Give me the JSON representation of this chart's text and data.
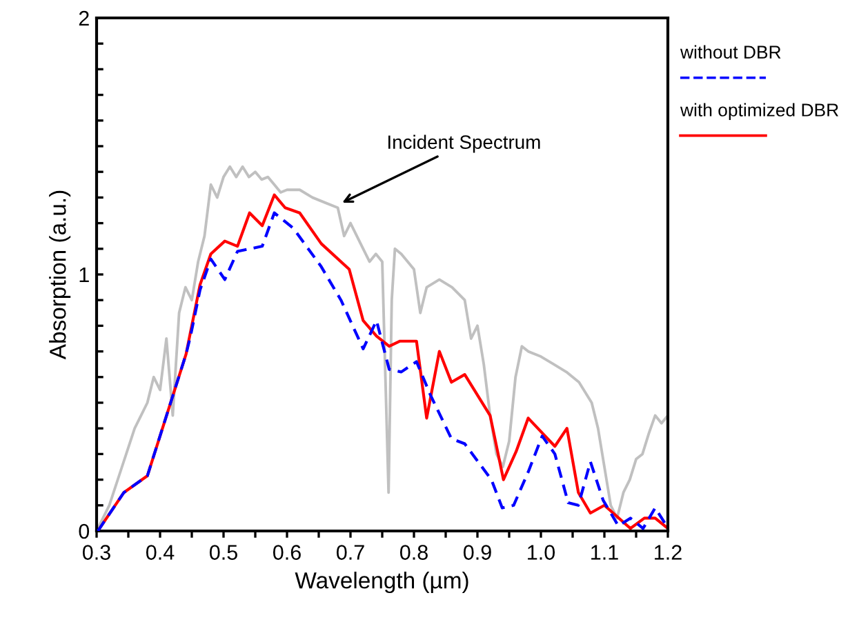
{
  "chart_data": {
    "type": "line",
    "xlabel": "Wavelength (µm)",
    "ylabel": "Absorption (a.u.)",
    "xlim": [
      0.3,
      1.2
    ],
    "ylim": [
      0,
      2
    ],
    "xticks": [
      0.3,
      {
        "value": 0.35,
        "label": null
      },
      0.4,
      {
        "value": 0.45,
        "label": null
      },
      0.5,
      {
        "value": 0.55,
        "label": null
      },
      0.6,
      {
        "value": 0.65,
        "label": null
      },
      0.7,
      {
        "value": 0.75,
        "label": null
      },
      0.8,
      {
        "value": 0.85,
        "label": null
      },
      0.9,
      {
        "value": 0.95,
        "label": null
      },
      {
        "value": 1.0,
        "label": "1.0"
      },
      {
        "value": 1.05,
        "label": null
      },
      1.1,
      {
        "value": 1.15,
        "label": null
      },
      1.2
    ],
    "yticks": [
      0,
      {
        "value": 0.1,
        "label": null
      },
      {
        "value": 0.2,
        "label": null
      },
      {
        "value": 0.3,
        "label": null
      },
      {
        "value": 0.4,
        "label": null
      },
      {
        "value": 0.5,
        "label": null
      },
      {
        "value": 0.6,
        "label": null
      },
      {
        "value": 0.7,
        "label": null
      },
      {
        "value": 0.8,
        "label": null
      },
      {
        "value": 0.9,
        "label": null
      },
      1,
      {
        "value": 1.1,
        "label": null
      },
      {
        "value": 1.2,
        "label": null
      },
      {
        "value": 1.3,
        "label": null
      },
      {
        "value": 1.4,
        "label": null
      },
      {
        "value": 1.5,
        "label": null
      },
      {
        "value": 1.6,
        "label": null
      },
      {
        "value": 1.7,
        "label": null
      },
      {
        "value": 1.8,
        "label": null
      },
      {
        "value": 1.9,
        "label": null
      },
      2
    ],
    "grid": false,
    "legend": "right",
    "marker": "none",
    "annotations": [
      {
        "text": "Incident Spectrum",
        "x": 0.687,
        "y": 1.28
      }
    ],
    "series": [
      {
        "color": "#c0c0c0",
        "line_style": "solid",
        "x": [
          0.3,
          0.32,
          0.34,
          0.36,
          0.37,
          0.38,
          0.39,
          0.4,
          0.41,
          0.42,
          0.43,
          0.44,
          0.45,
          0.46,
          0.47,
          0.48,
          0.49,
          0.5,
          0.51,
          0.52,
          0.53,
          0.54,
          0.55,
          0.56,
          0.57,
          0.58,
          0.59,
          0.6,
          0.62,
          0.64,
          0.66,
          0.68,
          0.69,
          0.7,
          0.72,
          0.73,
          0.74,
          0.75,
          0.755,
          0.76,
          0.765,
          0.77,
          0.78,
          0.8,
          0.81,
          0.82,
          0.84,
          0.86,
          0.88,
          0.89,
          0.9,
          0.91,
          0.92,
          0.93,
          0.94,
          0.95,
          0.96,
          0.97,
          0.98,
          1.0,
          1.02,
          1.04,
          1.06,
          1.08,
          1.09,
          1.1,
          1.11,
          1.12,
          1.13,
          1.14,
          1.15,
          1.16,
          1.17,
          1.18,
          1.19,
          1.2
        ],
        "values": [
          0,
          0.1,
          0.25,
          0.4,
          0.45,
          0.5,
          0.6,
          0.55,
          0.75,
          0.45,
          0.85,
          0.95,
          0.9,
          1.05,
          1.15,
          1.35,
          1.3,
          1.38,
          1.42,
          1.38,
          1.42,
          1.38,
          1.4,
          1.37,
          1.38,
          1.35,
          1.32,
          1.33,
          1.33,
          1.3,
          1.28,
          1.26,
          1.15,
          1.2,
          1.1,
          1.05,
          1.08,
          1.05,
          0.6,
          0.15,
          0.9,
          1.1,
          1.08,
          1.02,
          0.85,
          0.95,
          0.98,
          0.95,
          0.9,
          0.75,
          0.8,
          0.65,
          0.45,
          0.3,
          0.25,
          0.35,
          0.6,
          0.72,
          0.7,
          0.68,
          0.65,
          0.62,
          0.58,
          0.5,
          0.4,
          0.25,
          0.1,
          0.05,
          0.15,
          0.2,
          0.28,
          0.3,
          0.38,
          0.45,
          0.42,
          0.45
        ]
      },
      {
        "name": "without DBR",
        "color": "#0000ff",
        "line_style": "dashed",
        "x": [
          0.302,
          0.343,
          0.38,
          0.441,
          0.448,
          0.463,
          0.48,
          0.502,
          0.522,
          0.561,
          0.58,
          0.61,
          0.654,
          0.685,
          0.72,
          0.741,
          0.761,
          0.78,
          0.804,
          0.826,
          0.859,
          0.88,
          0.922,
          0.939,
          0.957,
          0.98,
          1.002,
          1.022,
          1.043,
          1.059,
          1.078,
          1.098,
          1.122,
          1.141,
          1.161,
          1.18,
          1.198
        ],
        "values": [
          0,
          0.15,
          0.215,
          0.69,
          0.76,
          0.94,
          1.06,
          0.98,
          1.09,
          1.11,
          1.24,
          1.18,
          1.03,
          0.9,
          0.71,
          0.82,
          0.63,
          0.62,
          0.66,
          0.53,
          0.36,
          0.34,
          0.2,
          0.09,
          0.1,
          0.23,
          0.37,
          0.3,
          0.11,
          0.1,
          0.27,
          0.12,
          0.02,
          0.05,
          0.01,
          0.09,
          0.02
        ]
      },
      {
        "name": "with optimized DBR",
        "color": "#ff0000",
        "line_style": "solid",
        "x": [
          0.302,
          0.343,
          0.38,
          0.441,
          0.463,
          0.48,
          0.502,
          0.522,
          0.541,
          0.561,
          0.58,
          0.597,
          0.62,
          0.654,
          0.698,
          0.72,
          0.741,
          0.761,
          0.778,
          0.804,
          0.82,
          0.84,
          0.859,
          0.88,
          0.92,
          0.941,
          0.961,
          0.98,
          1.022,
          1.041,
          1.059,
          1.078,
          1.1,
          1.141,
          1.163,
          1.18,
          1.2
        ],
        "values": [
          0,
          0.15,
          0.215,
          0.69,
          0.96,
          1.08,
          1.13,
          1.11,
          1.24,
          1.19,
          1.31,
          1.26,
          1.24,
          1.12,
          1.02,
          0.82,
          0.76,
          0.72,
          0.74,
          0.74,
          0.44,
          0.7,
          0.58,
          0.61,
          0.45,
          0.2,
          0.31,
          0.44,
          0.33,
          0.4,
          0.15,
          0.07,
          0.1,
          0.01,
          0.05,
          0.05,
          0.01
        ]
      }
    ]
  }
}
